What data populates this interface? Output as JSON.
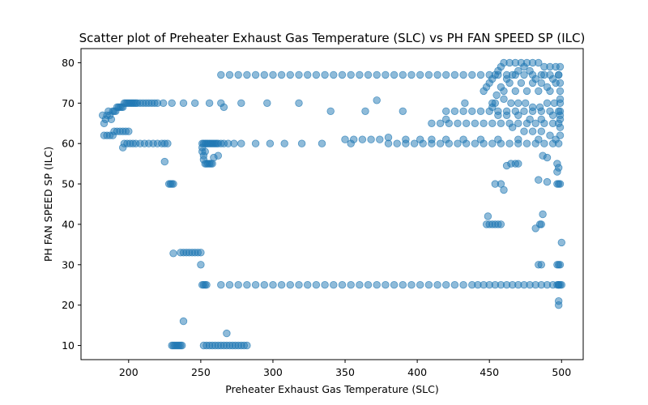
{
  "chart_data": {
    "type": "scatter",
    "title": "Scatter plot of Preheater Exhaust Gas Temperature (SLC) vs PH FAN SPEED SP (ILC)",
    "xlabel": "Preheater Exhaust Gas Temperature (SLC)",
    "ylabel": "PH FAN SPEED SP (ILC)",
    "xlim": [
      167,
      515
    ],
    "ylim": [
      6.5,
      83.5
    ],
    "xticks": [
      200,
      250,
      300,
      350,
      400,
      450,
      500
    ],
    "yticks": [
      10,
      20,
      30,
      40,
      50,
      60,
      70,
      80
    ],
    "grid": false,
    "legend": "none",
    "marker_color": "#1f77b4",
    "marker_alpha": 0.5,
    "points": [
      [
        182,
        67
      ],
      [
        183,
        65
      ],
      [
        184,
        66
      ],
      [
        185,
        67
      ],
      [
        186,
        68
      ],
      [
        187,
        67
      ],
      [
        188,
        66
      ],
      [
        189,
        68
      ],
      [
        190,
        68
      ],
      [
        191,
        68
      ],
      [
        192,
        69
      ],
      [
        193,
        69
      ],
      [
        194,
        69
      ],
      [
        195,
        69
      ],
      [
        196,
        69
      ],
      [
        197,
        70
      ],
      [
        198,
        70
      ],
      [
        199,
        70
      ],
      [
        200,
        70
      ],
      [
        201,
        70
      ],
      [
        202,
        70
      ],
      [
        203,
        70
      ],
      [
        204,
        70
      ],
      [
        205,
        70
      ],
      [
        206,
        70
      ],
      [
        208,
        70
      ],
      [
        210,
        70
      ],
      [
        212,
        70
      ],
      [
        214,
        70
      ],
      [
        216,
        70
      ],
      [
        218,
        70
      ],
      [
        220,
        70
      ],
      [
        224,
        70
      ],
      [
        230,
        70
      ],
      [
        238,
        70
      ],
      [
        246,
        70
      ],
      [
        256,
        70
      ],
      [
        264,
        70
      ],
      [
        278,
        70
      ],
      [
        296,
        70
      ],
      [
        318,
        70
      ],
      [
        183,
        62
      ],
      [
        185,
        62
      ],
      [
        187,
        62
      ],
      [
        189,
        62
      ],
      [
        190,
        63
      ],
      [
        192,
        63
      ],
      [
        194,
        63
      ],
      [
        196,
        63
      ],
      [
        198,
        63
      ],
      [
        200,
        63
      ],
      [
        197,
        60
      ],
      [
        199,
        60
      ],
      [
        201,
        60
      ],
      [
        203,
        60
      ],
      [
        205,
        60
      ],
      [
        208,
        60
      ],
      [
        211,
        60
      ],
      [
        214,
        60
      ],
      [
        217,
        60
      ],
      [
        220,
        60
      ],
      [
        223,
        60
      ],
      [
        225,
        60
      ],
      [
        227,
        60
      ],
      [
        196,
        59
      ],
      [
        228,
        50
      ],
      [
        229,
        50
      ],
      [
        230,
        50
      ],
      [
        231,
        50
      ],
      [
        225,
        55.5
      ],
      [
        236,
        33
      ],
      [
        238,
        33
      ],
      [
        240,
        33
      ],
      [
        242,
        33
      ],
      [
        244,
        33
      ],
      [
        246,
        33
      ],
      [
        248,
        33
      ],
      [
        250,
        33
      ],
      [
        231,
        32.8
      ],
      [
        250,
        30
      ],
      [
        230,
        10
      ],
      [
        231,
        10
      ],
      [
        232,
        10
      ],
      [
        233,
        10
      ],
      [
        234,
        10
      ],
      [
        235,
        10
      ],
      [
        236,
        10
      ],
      [
        237,
        10
      ],
      [
        238,
        16
      ],
      [
        252,
        10
      ],
      [
        254,
        10
      ],
      [
        256,
        10
      ],
      [
        258,
        10
      ],
      [
        260,
        10
      ],
      [
        262,
        10
      ],
      [
        264,
        10
      ],
      [
        266,
        10
      ],
      [
        268,
        10
      ],
      [
        270,
        10
      ],
      [
        272,
        10
      ],
      [
        274,
        10
      ],
      [
        276,
        10
      ],
      [
        278,
        10
      ],
      [
        280,
        10
      ],
      [
        282,
        10
      ],
      [
        268,
        13
      ],
      [
        251,
        25
      ],
      [
        252,
        25
      ],
      [
        253,
        25
      ],
      [
        254,
        25
      ],
      [
        251,
        60
      ],
      [
        252,
        60
      ],
      [
        253,
        60
      ],
      [
        254,
        60
      ],
      [
        255,
        60
      ],
      [
        256,
        60
      ],
      [
        257,
        60
      ],
      [
        258,
        60
      ],
      [
        259,
        60
      ],
      [
        260,
        60
      ],
      [
        261,
        60
      ],
      [
        262,
        60
      ],
      [
        264,
        60
      ],
      [
        266,
        60
      ],
      [
        269,
        60
      ],
      [
        273,
        60
      ],
      [
        278,
        60
      ],
      [
        288,
        60
      ],
      [
        298,
        60
      ],
      [
        308,
        60
      ],
      [
        320,
        60
      ],
      [
        334,
        60
      ],
      [
        251,
        59
      ],
      [
        251,
        58
      ],
      [
        252,
        57
      ],
      [
        252,
        56
      ],
      [
        253,
        55
      ],
      [
        254,
        55
      ],
      [
        255,
        55
      ],
      [
        256,
        55
      ],
      [
        257,
        55
      ],
      [
        258,
        55
      ],
      [
        259,
        56.5
      ],
      [
        262,
        57
      ],
      [
        253,
        58
      ],
      [
        264,
        77
      ],
      [
        270,
        77
      ],
      [
        276,
        77
      ],
      [
        282,
        77
      ],
      [
        288,
        77
      ],
      [
        294,
        77
      ],
      [
        300,
        77
      ],
      [
        306,
        77
      ],
      [
        312,
        77
      ],
      [
        318,
        77
      ],
      [
        324,
        77
      ],
      [
        330,
        77
      ],
      [
        336,
        77
      ],
      [
        342,
        77
      ],
      [
        348,
        77
      ],
      [
        354,
        77
      ],
      [
        360,
        77
      ],
      [
        366,
        77
      ],
      [
        372,
        77
      ],
      [
        378,
        77
      ],
      [
        384,
        77
      ],
      [
        390,
        77
      ],
      [
        396,
        77
      ],
      [
        402,
        77
      ],
      [
        408,
        77
      ],
      [
        414,
        77
      ],
      [
        420,
        77
      ],
      [
        426,
        77
      ],
      [
        432,
        77
      ],
      [
        438,
        77
      ],
      [
        444,
        77
      ],
      [
        450,
        77
      ],
      [
        456,
        77
      ],
      [
        462,
        77
      ],
      [
        468,
        77
      ],
      [
        474,
        77
      ],
      [
        480,
        77
      ],
      [
        486,
        77
      ],
      [
        492,
        77
      ],
      [
        498,
        77
      ],
      [
        266,
        69
      ],
      [
        264,
        25
      ],
      [
        270,
        25
      ],
      [
        276,
        25
      ],
      [
        282,
        25
      ],
      [
        288,
        25
      ],
      [
        294,
        25
      ],
      [
        300,
        25
      ],
      [
        306,
        25
      ],
      [
        312,
        25
      ],
      [
        318,
        25
      ],
      [
        324,
        25
      ],
      [
        330,
        25
      ],
      [
        336,
        25
      ],
      [
        342,
        25
      ],
      [
        348,
        25
      ],
      [
        354,
        25
      ],
      [
        360,
        25
      ],
      [
        366,
        25
      ],
      [
        372,
        25
      ],
      [
        378,
        25
      ],
      [
        384,
        25
      ],
      [
        390,
        25
      ],
      [
        396,
        25
      ],
      [
        402,
        25
      ],
      [
        408,
        25
      ],
      [
        414,
        25
      ],
      [
        420,
        25
      ],
      [
        426,
        25
      ],
      [
        432,
        25
      ],
      [
        438,
        25
      ],
      [
        442,
        25
      ],
      [
        446,
        25
      ],
      [
        450,
        25
      ],
      [
        454,
        25
      ],
      [
        458,
        25
      ],
      [
        462,
        25
      ],
      [
        466,
        25
      ],
      [
        470,
        25
      ],
      [
        474,
        25
      ],
      [
        478,
        25
      ],
      [
        482,
        25
      ],
      [
        486,
        25
      ],
      [
        490,
        25
      ],
      [
        494,
        25
      ],
      [
        498,
        25
      ],
      [
        340,
        68
      ],
      [
        364,
        68
      ],
      [
        372,
        70.7
      ],
      [
        390,
        68
      ],
      [
        350,
        61
      ],
      [
        356,
        61
      ],
      [
        362,
        61
      ],
      [
        368,
        61
      ],
      [
        374,
        61
      ],
      [
        354,
        60
      ],
      [
        380,
        60
      ],
      [
        386,
        60
      ],
      [
        392,
        60
      ],
      [
        398,
        60
      ],
      [
        404,
        60
      ],
      [
        410,
        60
      ],
      [
        416,
        60
      ],
      [
        422,
        60
      ],
      [
        428,
        60
      ],
      [
        434,
        60
      ],
      [
        440,
        60
      ],
      [
        446,
        60
      ],
      [
        452,
        60
      ],
      [
        458,
        60
      ],
      [
        464,
        60
      ],
      [
        470,
        60
      ],
      [
        476,
        60
      ],
      [
        482,
        60
      ],
      [
        488,
        60
      ],
      [
        494,
        60
      ],
      [
        498,
        60
      ],
      [
        380,
        61.5
      ],
      [
        392,
        61
      ],
      [
        402,
        61
      ],
      [
        410,
        61
      ],
      [
        420,
        61
      ],
      [
        432,
        61
      ],
      [
        444,
        61
      ],
      [
        456,
        61
      ],
      [
        470,
        61
      ],
      [
        484,
        61
      ],
      [
        496,
        61
      ],
      [
        420,
        68
      ],
      [
        426,
        68
      ],
      [
        432,
        68
      ],
      [
        438,
        68
      ],
      [
        444,
        68
      ],
      [
        450,
        68
      ],
      [
        456,
        68
      ],
      [
        462,
        68
      ],
      [
        468,
        68
      ],
      [
        474,
        68
      ],
      [
        480,
        68
      ],
      [
        486,
        68
      ],
      [
        492,
        68
      ],
      [
        498,
        68
      ],
      [
        433,
        70
      ],
      [
        452,
        70
      ],
      [
        410,
        65
      ],
      [
        416,
        65
      ],
      [
        422,
        65
      ],
      [
        428,
        65
      ],
      [
        434,
        65
      ],
      [
        440,
        65
      ],
      [
        446,
        65
      ],
      [
        452,
        65
      ],
      [
        458,
        65
      ],
      [
        464,
        65
      ],
      [
        470,
        65
      ],
      [
        476,
        65
      ],
      [
        482,
        65
      ],
      [
        488,
        65
      ],
      [
        494,
        65
      ],
      [
        498,
        65
      ],
      [
        420,
        66
      ],
      [
        446,
        73
      ],
      [
        448,
        74
      ],
      [
        450,
        75
      ],
      [
        452,
        76
      ],
      [
        454,
        77
      ],
      [
        456,
        78
      ],
      [
        458,
        79
      ],
      [
        460,
        80
      ],
      [
        464,
        80
      ],
      [
        468,
        80
      ],
      [
        472,
        80
      ],
      [
        476,
        80
      ],
      [
        480,
        80
      ],
      [
        484,
        80
      ],
      [
        488,
        79
      ],
      [
        492,
        79
      ],
      [
        496,
        79
      ],
      [
        499,
        79
      ],
      [
        455,
        72
      ],
      [
        460,
        71
      ],
      [
        465,
        70
      ],
      [
        470,
        70
      ],
      [
        475,
        70
      ],
      [
        480,
        69
      ],
      [
        485,
        69
      ],
      [
        490,
        70
      ],
      [
        495,
        70
      ],
      [
        499,
        70
      ],
      [
        458,
        74
      ],
      [
        462,
        76
      ],
      [
        466,
        77
      ],
      [
        470,
        78
      ],
      [
        474,
        79
      ],
      [
        478,
        78
      ],
      [
        482,
        76
      ],
      [
        486,
        75
      ],
      [
        490,
        74
      ],
      [
        494,
        76
      ],
      [
        498,
        77
      ],
      [
        460,
        73
      ],
      [
        468,
        73
      ],
      [
        476,
        73
      ],
      [
        484,
        73
      ],
      [
        492,
        73
      ],
      [
        499,
        73
      ],
      [
        464,
        75
      ],
      [
        472,
        75
      ],
      [
        480,
        75
      ],
      [
        488,
        77
      ],
      [
        496,
        75
      ],
      [
        499,
        75
      ],
      [
        454,
        70
      ],
      [
        452,
        69
      ],
      [
        456,
        67
      ],
      [
        462,
        67
      ],
      [
        470,
        67
      ],
      [
        478,
        66
      ],
      [
        486,
        66
      ],
      [
        494,
        67
      ],
      [
        499,
        67
      ],
      [
        466,
        64
      ],
      [
        474,
        63
      ],
      [
        480,
        63
      ],
      [
        486,
        63
      ],
      [
        492,
        62
      ],
      [
        499,
        62
      ],
      [
        499,
        64
      ],
      [
        499,
        66
      ],
      [
        499,
        68
      ],
      [
        499,
        71
      ],
      [
        465,
        55
      ],
      [
        468,
        55
      ],
      [
        470,
        55
      ],
      [
        462,
        54.5
      ],
      [
        460,
        48.5
      ],
      [
        458,
        50
      ],
      [
        454,
        50
      ],
      [
        449,
        42
      ],
      [
        448,
        40
      ],
      [
        450,
        40
      ],
      [
        452,
        40
      ],
      [
        454,
        40
      ],
      [
        456,
        40
      ],
      [
        458,
        40
      ],
      [
        482,
        39
      ],
      [
        485,
        40
      ],
      [
        486,
        40
      ],
      [
        487,
        42.5
      ],
      [
        490,
        50.5
      ],
      [
        484,
        51
      ],
      [
        487,
        57
      ],
      [
        490,
        56.5
      ],
      [
        484,
        30
      ],
      [
        486,
        30
      ],
      [
        497,
        55
      ],
      [
        497,
        53
      ],
      [
        498,
        54
      ],
      [
        497,
        50
      ],
      [
        498,
        50
      ],
      [
        499,
        50
      ],
      [
        497,
        30
      ],
      [
        498,
        30
      ],
      [
        499,
        30
      ],
      [
        500,
        35.5
      ],
      [
        497,
        25
      ],
      [
        498,
        25
      ],
      [
        499,
        25
      ],
      [
        500,
        25
      ],
      [
        498,
        21
      ],
      [
        498,
        20
      ]
    ]
  }
}
